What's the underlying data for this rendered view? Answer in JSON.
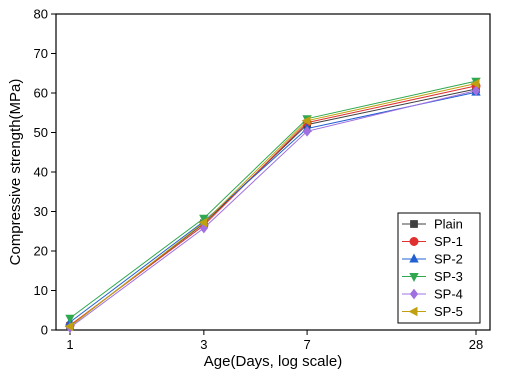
{
  "chart_data": {
    "type": "line",
    "x_scale": "log",
    "x": [
      1,
      3,
      7,
      28
    ],
    "x_tick_labels": [
      "1",
      "3",
      "7",
      "28"
    ],
    "xlabel": "Age(Days, log scale)",
    "ylabel": "Compressive strength(MPa)",
    "ylim": [
      0,
      80
    ],
    "y_ticks": [
      0,
      10,
      20,
      30,
      40,
      50,
      60,
      70,
      80
    ],
    "grid": false,
    "legend_position": "bottom-right",
    "series": [
      {
        "name": "Plain",
        "color": "#404040",
        "marker": "square",
        "values": [
          1.0,
          27.0,
          52.0,
          61.0
        ]
      },
      {
        "name": "SP-1",
        "color": "#e03030",
        "marker": "circle",
        "values": [
          1.2,
          26.5,
          52.5,
          61.8
        ]
      },
      {
        "name": "SP-2",
        "color": "#2060d0",
        "marker": "triangle-up",
        "values": [
          2.0,
          27.5,
          51.0,
          60.2
        ]
      },
      {
        "name": "SP-3",
        "color": "#2fa84f",
        "marker": "triangle-down",
        "values": [
          3.0,
          28.3,
          53.5,
          63.0
        ]
      },
      {
        "name": "SP-4",
        "color": "#a070e0",
        "marker": "diamond",
        "values": [
          0.6,
          25.8,
          50.3,
          60.6
        ]
      },
      {
        "name": "SP-5",
        "color": "#c0a010",
        "marker": "triangle-left",
        "values": [
          0.9,
          27.2,
          53.0,
          62.4
        ]
      }
    ]
  }
}
